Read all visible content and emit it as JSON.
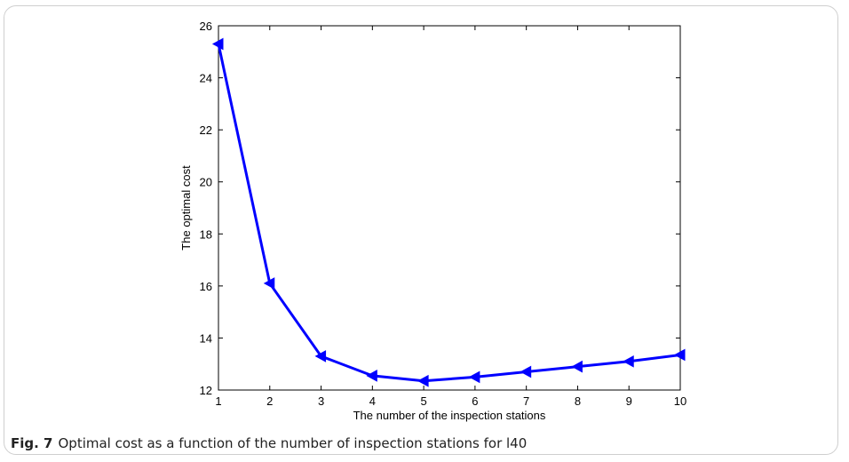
{
  "caption": {
    "label": "Fig. 7",
    "text": "Optimal cost as a function of the number of inspection stations for l40"
  },
  "chart_data": {
    "type": "line",
    "x": [
      1,
      2,
      3,
      4,
      5,
      6,
      7,
      8,
      9,
      10
    ],
    "series": [
      {
        "values": [
          25.3,
          16.1,
          13.3,
          12.55,
          12.35,
          12.5,
          12.7,
          12.9,
          13.1,
          13.35
        ],
        "color": "#0000ff",
        "marker": "left-triangle"
      }
    ],
    "xlabel": "The number of the inspection stations",
    "ylabel": "The optimal cost",
    "xlim": [
      1,
      10
    ],
    "ylim": [
      12,
      26
    ],
    "xticks": [
      "1",
      "2",
      "3",
      "4",
      "5",
      "6",
      "7",
      "8",
      "9",
      "10"
    ],
    "yticks": [
      "12",
      "14",
      "16",
      "18",
      "20",
      "22",
      "24",
      "26"
    ],
    "grid": false
  }
}
